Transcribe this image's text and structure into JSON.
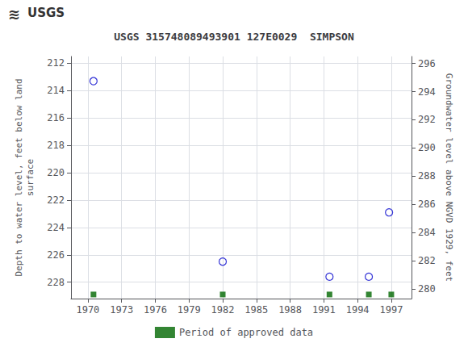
{
  "chart_data": {
    "type": "scatter",
    "title": "USGS 315748089493901 127E0029  SIMPSON",
    "annotations": [
      "≋",
      "USGS"
    ],
    "y_label": "Depth to water level, feet below land\nsurface",
    "y2_label": "Groundwater level above NGVD 1929, feet",
    "series": [
      {
        "x": [
          1970.5,
          1982.0,
          1991.5,
          1995.0,
          1996.8
        ],
        "values": [
          213.3,
          226.5,
          227.6,
          227.6,
          222.9
        ],
        "color": "#0000cc",
        "marker": "open_circle"
      },
      {
        "name": "Period of approved data",
        "x": [
          1970.5,
          1982.0,
          1991.5,
          1995.0,
          1997.0
        ],
        "values": [
          228.9,
          228.9,
          228.9,
          228.9,
          228.9
        ],
        "color": "#006600",
        "marker": "square"
      }
    ],
    "xlim": [
      1968.5,
      1998.8
    ],
    "xticks": [
      1970,
      1973,
      1976,
      1979,
      1982,
      1985,
      1988,
      1991,
      1994,
      1997
    ],
    "ylim": [
      229.2,
      211.5
    ],
    "yticks": [
      212,
      214,
      216,
      218,
      220,
      222,
      224,
      226,
      228
    ],
    "y2lim": [
      279.3,
      296.5
    ],
    "y2ticks": [
      296,
      294,
      292,
      290,
      288,
      286,
      284,
      282,
      280
    ],
    "grid": true,
    "legend": "bottom"
  }
}
